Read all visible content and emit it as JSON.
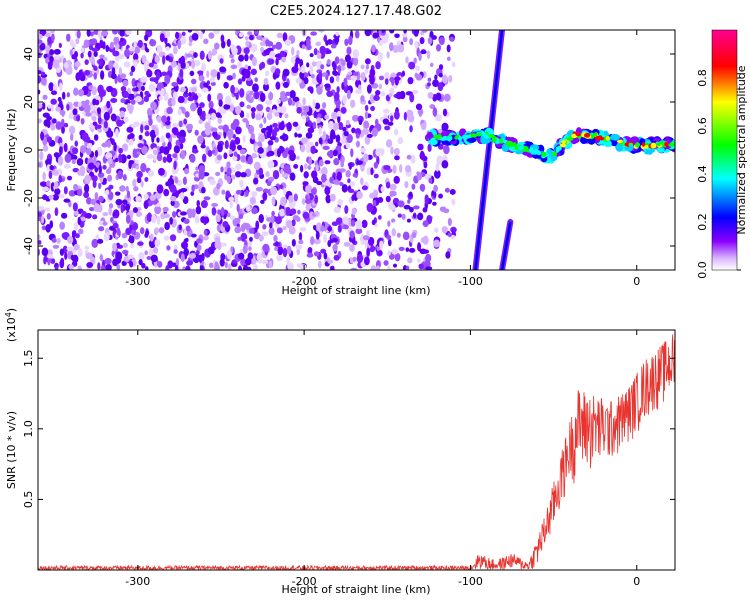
{
  "title": "C2E5.2024.127.17.48.G02",
  "chart_data": [
    {
      "type": "heatmap",
      "xlabel": "Height of straight line (km)",
      "ylabel": "Frequency (Hz)",
      "xlim": [
        -360,
        23
      ],
      "ylim": [
        -50,
        50
      ],
      "xticks": [
        -300,
        -200,
        -100,
        0
      ],
      "yticks": [
        -40,
        -20,
        0,
        20,
        40
      ],
      "colorbar": {
        "label": "Normalized spectral amplitude",
        "range": [
          0,
          1
        ],
        "ticks": [
          0.0,
          0.2,
          0.4,
          0.6,
          0.8
        ],
        "colors": [
          "#ffffff",
          "#8a00ff",
          "#0000ff",
          "#00ffff",
          "#00ff00",
          "#ffff00",
          "#ff0000",
          "#ff00a0"
        ]
      },
      "features": {
        "noise_band": {
          "x": [
            -360,
            -110
          ],
          "y": [
            -50,
            50
          ],
          "amplitude": 0.25
        },
        "main_ridge": [
          [
            -125,
            5
          ],
          [
            -110,
            5
          ],
          [
            -100,
            6
          ],
          [
            -90,
            6
          ],
          [
            -80,
            3
          ],
          [
            -70,
            1
          ],
          [
            -60,
            -1
          ],
          [
            -52,
            -3
          ],
          [
            -45,
            2
          ],
          [
            -38,
            6
          ],
          [
            -25,
            6
          ],
          [
            -15,
            4
          ],
          [
            -5,
            2
          ],
          [
            5,
            2
          ],
          [
            15,
            2
          ],
          [
            23,
            3
          ]
        ],
        "chirp_lines": [
          {
            "x": [
              -97,
              -81
            ],
            "y": [
              -50,
              50
            ]
          },
          {
            "x": [
              -81,
              -76
            ],
            "y": [
              -50,
              -30
            ]
          }
        ]
      }
    },
    {
      "type": "line",
      "xlabel": "Height of straight line (km)",
      "ylabel": "SNR (10 * v/v)",
      "scale_label": "(x10^4)",
      "xlim": [
        -360,
        23
      ],
      "ylim": [
        0,
        1.7
      ],
      "xticks": [
        -300,
        -200,
        -100,
        0
      ],
      "yticks": [
        0.5,
        1.0,
        1.5
      ],
      "color": "#e8332e",
      "envelope": [
        [
          -360,
          0.03
        ],
        [
          -100,
          0.03
        ],
        [
          -95,
          0.12
        ],
        [
          -85,
          0.07
        ],
        [
          -75,
          0.12
        ],
        [
          -65,
          0.06
        ],
        [
          -55,
          0.4
        ],
        [
          -45,
          0.85
        ],
        [
          -35,
          1.3
        ],
        [
          -25,
          1.25
        ],
        [
          -15,
          1.2
        ],
        [
          -5,
          1.3
        ],
        [
          5,
          1.5
        ],
        [
          15,
          1.6
        ],
        [
          23,
          1.7
        ]
      ],
      "baseline": [
        [
          -360,
          0.0
        ],
        [
          -60,
          0.0
        ],
        [
          -50,
          0.25
        ],
        [
          -40,
          0.6
        ],
        [
          -30,
          0.65
        ],
        [
          -20,
          0.7
        ],
        [
          -10,
          0.8
        ],
        [
          0,
          0.95
        ],
        [
          10,
          1.1
        ],
        [
          23,
          1.2
        ]
      ]
    }
  ]
}
